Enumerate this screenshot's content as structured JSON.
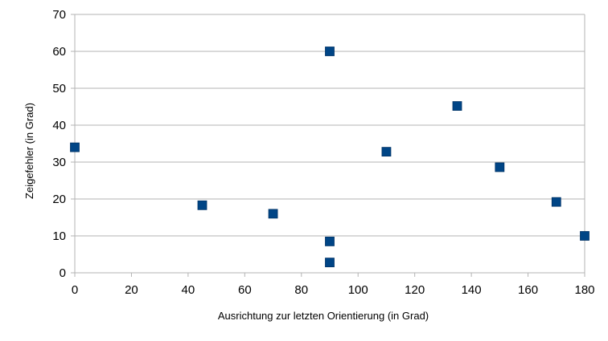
{
  "chart_data": {
    "type": "scatter",
    "title": "",
    "xlabel": "Ausrichtung zur letzten Orientierung (in Grad)",
    "ylabel": "Zeigefehler (in Grad)",
    "xlim": [
      0,
      180
    ],
    "ylim": [
      0,
      70
    ],
    "xticks": [
      "0",
      "20",
      "40",
      "60",
      "80",
      "100",
      "120",
      "140",
      "160",
      "180"
    ],
    "yticks": [
      "0",
      "10",
      "20",
      "30",
      "40",
      "50",
      "60",
      "70"
    ],
    "grid": "horizontal",
    "legend": "none",
    "marker_color": "#004586",
    "series": [
      {
        "points": [
          {
            "x": 0,
            "y": 34
          },
          {
            "x": 45,
            "y": 18.3
          },
          {
            "x": 70,
            "y": 16
          },
          {
            "x": 90,
            "y": 60
          },
          {
            "x": 90,
            "y": 8.5
          },
          {
            "x": 90,
            "y": 2.8
          },
          {
            "x": 110,
            "y": 32.8
          },
          {
            "x": 135,
            "y": 45.2
          },
          {
            "x": 150,
            "y": 28.6
          },
          {
            "x": 170,
            "y": 19.2
          },
          {
            "x": 180,
            "y": 10
          }
        ]
      }
    ]
  }
}
